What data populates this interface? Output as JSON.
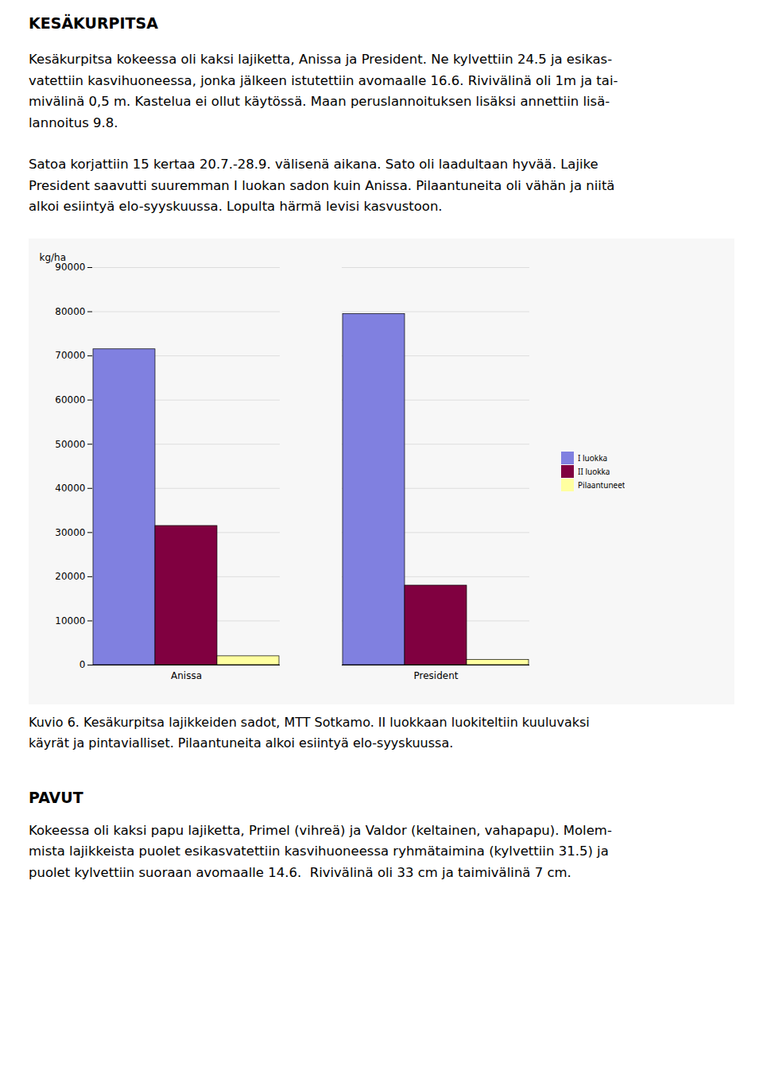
{
  "heading": "KESÄKURPITSA",
  "paragraphs": [
    [
      "Kesäkurpitsa kokeessa oli kaksi lajiketta, Anissa ja President. Ne kylvettiin 24.5 ja esikas-",
      "vatettiin kasvihuoneessa, jonka jälkeen istutettiin avomaalle 16.6. Rivivälinä oli 1m ja tai-",
      "mivälinä 0,5 m. Kastelua ei ollut käytössä. Maan peruslannoituksen lisäksi annettiin lisä-",
      "lannoitus 9.8."
    ],
    [
      "Satoa korjattiin 15 kertaa 20.7.-28.9. välisenä aikana. Sato oli laadultaan hyvää. Lajike",
      "President saavutti suuremman I luokan sadon kuin Anissa. Pilaantuneita oli vähän ja niitä",
      "alkoi esiintyä elo-syyskuussa. Lopulta härmä levisi kasvustoon."
    ]
  ],
  "chart_data": {
    "type": "bar",
    "categories": [
      "Anissa",
      "President"
    ],
    "series": [
      {
        "name": "I luokka",
        "color": "#8080e0",
        "values": [
          71500,
          79500
        ]
      },
      {
        "name": "II luokka",
        "color": "#800040",
        "values": [
          31500,
          18000
        ]
      },
      {
        "name": "Pilaantuneet",
        "color": "#ffffa0",
        "values": [
          2000,
          1200
        ]
      }
    ],
    "ylabel": "kg/ha",
    "ylim": [
      0,
      90000
    ],
    "yticks": [
      0,
      10000,
      20000,
      30000,
      40000,
      50000,
      60000,
      70000,
      80000,
      90000
    ],
    "grid": true,
    "legend": "right",
    "caption": [
      "Kuvio 6. Kesäkurpitsa lajikkeiden sadot, MTT Sotkamo. II luokkaan luokiteltiin kuuluvaksi",
      "käyrät ja pintavialliset. Pilaantuneita alkoi esiintyä elo-syyskuussa."
    ]
  },
  "section_heading": "PAVUT",
  "section_paragraph": [
    "Kokeessa oli kaksi papu lajiketta, Primel (vihreä) ja Valdor (keltainen, vahapapu). Molem-",
    "mista lajikkeista puolet esikasvatettiin kasvihuoneessa ryhmätaimina (kylvettiin 31.5) ja",
    "puolet kylvettiin suoraan avomaalle 14.6.  Rivivälinä oli 33 cm ja taimivälinä 7 cm."
  ]
}
